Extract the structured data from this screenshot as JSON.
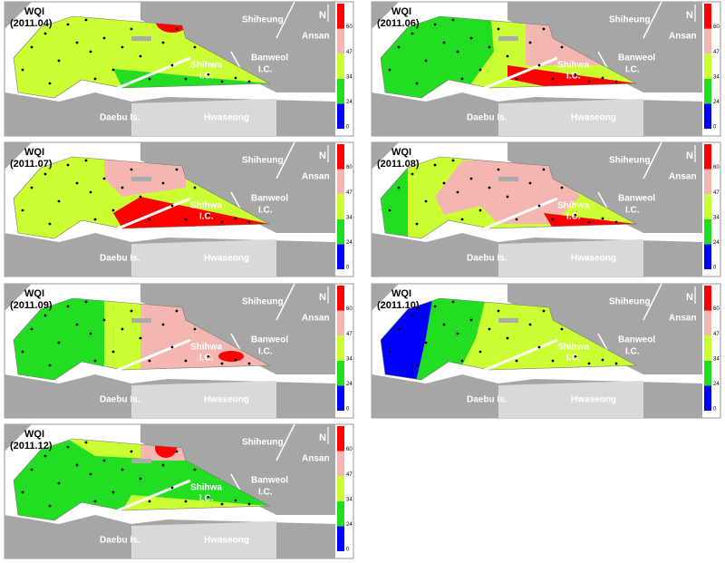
{
  "panels": [
    {
      "title": "WQI",
      "date": "(2011.04)"
    },
    {
      "title": "WQI",
      "date": "(2011.06)"
    },
    {
      "title": "WQI",
      "date": "(2011.07)"
    },
    {
      "title": "WQI",
      "date": "(2011.08)"
    },
    {
      "title": "WQI",
      "date": "(2011.09)"
    },
    {
      "title": "WQI",
      "date": "(2011.10)"
    },
    {
      "title": "WQI",
      "date": "(2011.12)"
    }
  ],
  "places": {
    "shiheung": "Shiheung",
    "ansan": "Ansan",
    "shihwa": "Shihwa",
    "shihwa_ic": "I.C.",
    "banweol": "Banweol",
    "banweol_ic": "I.C.",
    "daebu": "Daebu Is.",
    "hwaseong": "Hwaseong",
    "north": "N"
  },
  "legend": {
    "ticks": [
      0,
      24,
      34,
      47,
      60
    ],
    "colors": [
      "#0000ff",
      "#22dd22",
      "#ccff33",
      "#f4b6b0",
      "#ff0000"
    ]
  }
}
